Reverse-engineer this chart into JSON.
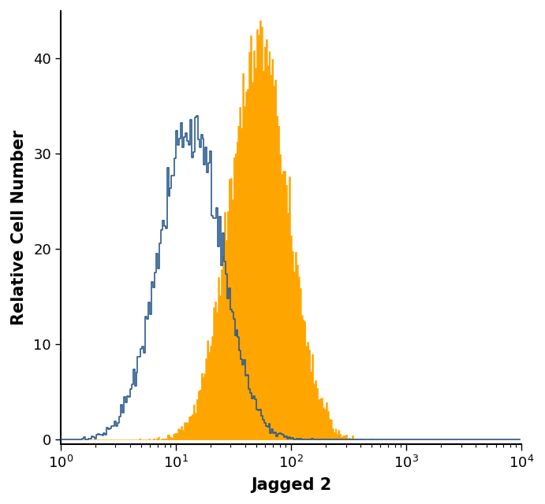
{
  "title": "",
  "xlabel": "Jagged 2",
  "ylabel": "Relative Cell Number",
  "xlim": [
    1,
    10000
  ],
  "ylim": [
    -0.5,
    45
  ],
  "yticks": [
    0,
    10,
    20,
    30,
    40
  ],
  "background_color": "#ffffff",
  "blue_color": "#2B5B8E",
  "orange_color": "#FFA500",
  "blue_peak_height": 34,
  "orange_peak_height": 44,
  "blue_log_mean": 1.13,
  "blue_log_std": 0.27,
  "orange_log_mean": 1.72,
  "orange_log_std": 0.25,
  "n_bins": 300,
  "n_samples": 25000
}
